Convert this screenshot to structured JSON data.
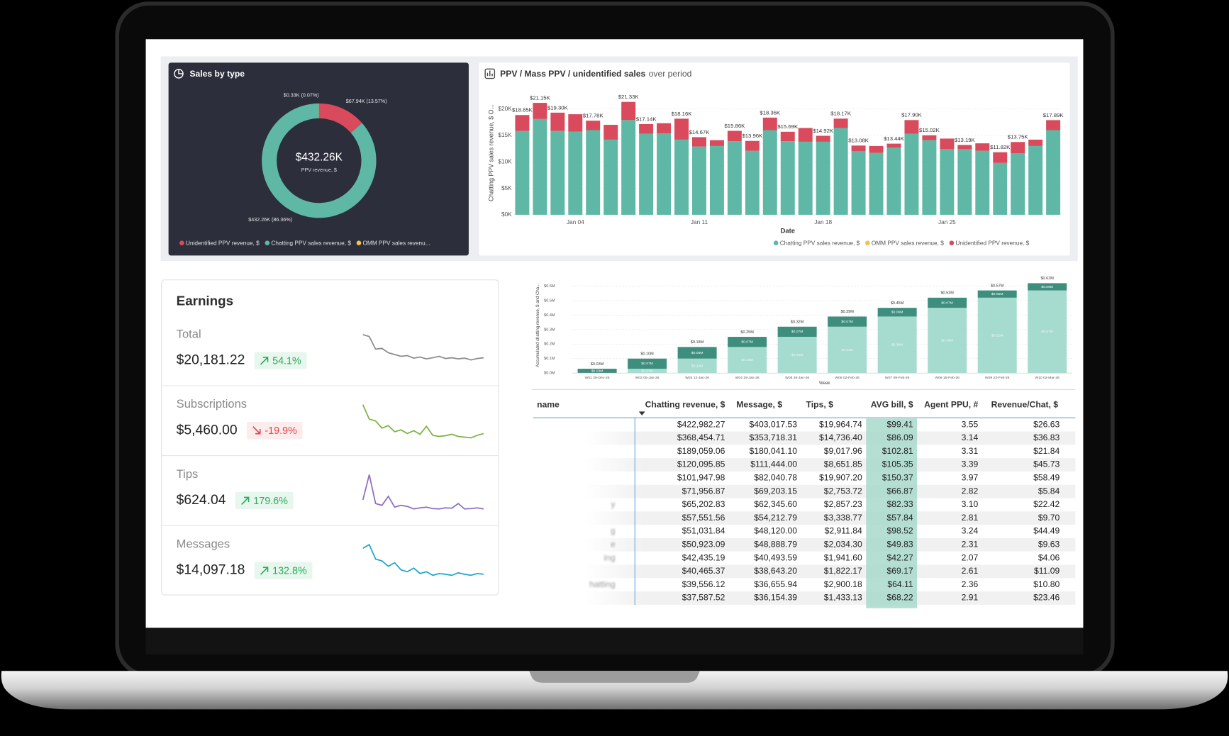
{
  "chart_data": [
    {
      "type": "pie",
      "title": "Sales by type",
      "center_label": "$432.26K",
      "center_sublabel": "PPV revenue, $",
      "categories": [
        "Unidentified PPV revenue, $",
        "Chatting PPV sales revenue, $",
        "OMM PPV sales revenu..."
      ],
      "values": [
        67940,
        432260,
        330
      ],
      "value_labels": [
        "$67.94K (13.57%)",
        "$432.26K (86.36%)",
        "$0.33K (0.07%)"
      ],
      "colors": [
        "#d94a5c",
        "#5fb8a6",
        "#f2c14e"
      ],
      "donut": true
    },
    {
      "type": "stacked_bar",
      "title": "PPV / Mass PPV / unidentified sales",
      "subtitle": "over period",
      "xlabel": "Date",
      "ylabel": "Chatting PPV sales revenue, $ O...",
      "categories": [
        null,
        null,
        null,
        "Jan 04",
        null,
        null,
        null,
        null,
        null,
        null,
        "Jan 11",
        null,
        null,
        null,
        null,
        null,
        null,
        "Jan 18",
        null,
        null,
        null,
        null,
        null,
        null,
        "Jan 25",
        null,
        null,
        null,
        null,
        null,
        null
      ],
      "series": [
        {
          "name": "Chatting PPV sales revenue, $",
          "color": "#5fb8a6",
          "values": [
            15850,
            18100,
            15850,
            15700,
            16000,
            14200,
            17900,
            15300,
            15400,
            14200,
            12900,
            13000,
            13900,
            12100,
            16000,
            13900,
            13800,
            13800,
            16400,
            12000,
            11700,
            12700,
            15300,
            14100,
            12400,
            12400,
            12100,
            9800,
            11600,
            13000,
            16000
          ]
        },
        {
          "name": "OMM PPV sales revenue, $",
          "color": "#f2c14e",
          "values": [
            0,
            0,
            0,
            0,
            0,
            0,
            0,
            0,
            0,
            0,
            0,
            0,
            0,
            0,
            0,
            0,
            0,
            0,
            0,
            0,
            0,
            0,
            0,
            0,
            0,
            0,
            0,
            0,
            0,
            0,
            0
          ]
        },
        {
          "name": "Unidentified PPV revenue, $",
          "color": "#d94a5c",
          "values": [
            3000,
            3050,
            3450,
            3300,
            1780,
            2800,
            3430,
            1840,
            1900,
            3960,
            1770,
            1100,
            1960,
            1860,
            2360,
            1790,
            2600,
            1120,
            1770,
            1080,
            1300,
            740,
            2600,
            920,
            2000,
            790,
            1400,
            2020,
            2150,
            1200,
            1890
          ]
        }
      ],
      "totals": {
        "values": [
          18850,
          21150,
          19300,
          null,
          17780,
          null,
          21330,
          17140,
          null,
          18160,
          14670,
          null,
          15860,
          13960,
          18360,
          15690,
          null,
          14920,
          18170,
          13080,
          null,
          13440,
          17900,
          15020,
          null,
          13190,
          null,
          11820,
          13750,
          null,
          17890
        ],
        "value_labels": [
          "$18.85K",
          "$21.15K",
          "$19.30K",
          null,
          "$17.78K",
          null,
          "$21.33K",
          "$17.14K",
          null,
          "$18.16K",
          "$14.67K",
          null,
          "$15.86K",
          "$13.96K",
          "$18.36K",
          "$15.69K",
          null,
          "$14.92K",
          "$18.17K",
          "$13.08K",
          null,
          "$13.44K",
          "$17.90K",
          "$15.02K",
          null,
          "$13.19K",
          null,
          "$11.82K",
          "$13.75K",
          null,
          "$17.89K"
        ]
      },
      "ylim": [
        0,
        22000
      ],
      "yticks": [
        {
          "value": 0,
          "label": "$0K"
        },
        {
          "value": 5000,
          "label": "$5K"
        },
        {
          "value": 10000,
          "label": "$10K"
        },
        {
          "value": 15000,
          "label": "$15K"
        },
        {
          "value": 20000,
          "label": "$20K"
        }
      ],
      "grid": true,
      "legend": "bottom-right"
    },
    {
      "type": "stacked_bar",
      "xlabel": "Week",
      "ylabel": "Accumulated chatting revenue, $ and Cha...",
      "categories": [
        "W01 29-Dec-25",
        "W02 05-Jan-26",
        "W03 12-Jan-26",
        "W04 19-Jan-26",
        "W05 26-Jan-26",
        "W06 02-Feb-26",
        "W07 09-Feb-26",
        "W08 16-Feb-26",
        "W09 23-Feb-26",
        "W10 02-Mar-26"
      ],
      "series": [
        {
          "color": "#a6dccf",
          "values": [
            0,
            30000,
            100000,
            180000,
            250000,
            320000,
            390000,
            450000,
            520000,
            570000
          ],
          "value_labels": [
            null,
            "$0.03M",
            "$0.10M",
            "$0.18M",
            "$0.25M",
            "$0.32M",
            "$0.39M",
            "$0.45M",
            "$0.52M",
            "$0.57M"
          ]
        },
        {
          "color": "#3e8e7e",
          "values": [
            30000,
            70000,
            80000,
            70000,
            70000,
            70000,
            60000,
            70000,
            50000,
            50000
          ],
          "value_labels": [
            "$0.03M",
            "$0.07M",
            "$0.08M",
            "$0.07M",
            "$0.07M",
            "$0.07M",
            "$0.06M",
            "$0.07M",
            "$0.05M",
            "$0.05M"
          ]
        }
      ],
      "totals": {
        "values": [
          30000,
          100000,
          180000,
          250000,
          320000,
          390000,
          450000,
          520000,
          570000,
          620000
        ],
        "value_labels": [
          "$0.03M",
          "$0.10M",
          "$0.18M",
          "$0.25M",
          "$0.32M",
          "$0.39M",
          "$0.45M",
          "$0.52M",
          "$0.57M",
          "$0.62M"
        ]
      },
      "ylim": [
        0,
        650000
      ],
      "yticks": [
        {
          "value": 0,
          "label": "$0.0M"
        },
        {
          "value": 100000,
          "label": "$0.1M"
        },
        {
          "value": 200000,
          "label": "$0.2M"
        },
        {
          "value": 300000,
          "label": "$0.3M"
        },
        {
          "value": 400000,
          "label": "$0.4M"
        },
        {
          "value": 500000,
          "label": "$0.5M"
        },
        {
          "value": 600000,
          "label": "$0.6M"
        }
      ],
      "grid": true
    }
  ],
  "earnings": {
    "title": "Earnings",
    "items": [
      {
        "label": "Total",
        "amount": "$20,181.22",
        "change": "54.1%",
        "direction": "up",
        "color": "#8c8c8c",
        "ylim": [
          0,
          100
        ],
        "values": [
          100,
          95,
          60,
          62,
          50,
          45,
          40,
          42,
          35,
          38,
          33,
          36,
          40,
          34,
          36,
          33,
          35,
          30,
          34,
          36
        ]
      },
      {
        "label": "Subscriptions",
        "amount": "$5,460.00",
        "change": "-19.9%",
        "direction": "down",
        "color": "#7cb342",
        "ylim": [
          0,
          100
        ],
        "values": [
          100,
          60,
          55,
          35,
          42,
          25,
          30,
          20,
          28,
          18,
          40,
          15,
          12,
          14,
          18,
          12,
          10,
          8,
          15,
          20
        ]
      },
      {
        "label": "Tips",
        "amount": "$624.04",
        "change": "179.6%",
        "direction": "up",
        "color": "#8e6fc1",
        "ylim": [
          0,
          100
        ],
        "values": [
          30,
          100,
          20,
          15,
          40,
          10,
          15,
          12,
          5,
          8,
          10,
          6,
          5,
          8,
          7,
          20,
          5,
          6,
          8,
          5
        ]
      },
      {
        "label": "Messages",
        "amount": "$14,097.18",
        "change": "132.8%",
        "direction": "up",
        "color": "#1fa8c9",
        "ylim": [
          0,
          100
        ],
        "values": [
          90,
          100,
          60,
          55,
          40,
          50,
          30,
          25,
          35,
          20,
          25,
          15,
          20,
          18,
          15,
          22,
          18,
          15,
          20,
          18
        ]
      }
    ]
  },
  "table": {
    "columns": [
      "name",
      "Chatting revenue, $",
      "Message, $",
      "Tips, $",
      "AVG bill, $",
      "Agent PPU, #",
      "Revenue/Chat, $"
    ],
    "rows": [
      [
        null,
        "$422,982.27",
        "$403,017.53",
        "$19,964.74",
        "$99.41",
        "3.55",
        "$26.63"
      ],
      [
        null,
        "$368,454.71",
        "$353,718.31",
        "$14,736.40",
        "$86.09",
        "3.14",
        "$36.83"
      ],
      [
        null,
        "$189,059.06",
        "$180,041.10",
        "$9,017.96",
        "$102.81",
        "3.31",
        "$21.84"
      ],
      [
        null,
        "$120,095.85",
        "$111,444.00",
        "$8,651.85",
        "$105.35",
        "3.39",
        "$45.73"
      ],
      [
        null,
        "$101,947.98",
        "$82,040.78",
        "$19,907.20",
        "$150.37",
        "3.97",
        "$58.49"
      ],
      [
        null,
        "$71,956.87",
        "$69,203.15",
        "$2,753.72",
        "$66.87",
        "2.82",
        "$5.84"
      ],
      [
        "y",
        "$65,202.83",
        "$62,345.60",
        "$2,857.23",
        "$82.33",
        "3.10",
        "$22.42"
      ],
      [
        null,
        "$57,551.56",
        "$54,212.79",
        "$3,338.77",
        "$57.84",
        "2.81",
        "$9.70"
      ],
      [
        "g",
        "$51,031.84",
        "$48,120.00",
        "$2,911.84",
        "$98.52",
        "3.24",
        "$44.49"
      ],
      [
        "e",
        "$50,923.09",
        "$48,888.79",
        "$2,034.30",
        "$49.83",
        "2.31",
        "$9.63"
      ],
      [
        "ing",
        "$42,435.19",
        "$40,493.59",
        "$1,941.60",
        "$42.27",
        "2.07",
        "$4.06"
      ],
      [
        null,
        "$40,465.37",
        "$38,643.20",
        "$1,822.17",
        "$69.17",
        "2.61",
        "$11.09"
      ],
      [
        "hatting",
        "$39,556.12",
        "$36,655.94",
        "$2,900.18",
        "$64.11",
        "2.36",
        "$10.80"
      ],
      [
        null,
        "$37,587.52",
        "$36,154.39",
        "$1,433.13",
        "$68.22",
        "2.91",
        "$23.46"
      ]
    ]
  }
}
